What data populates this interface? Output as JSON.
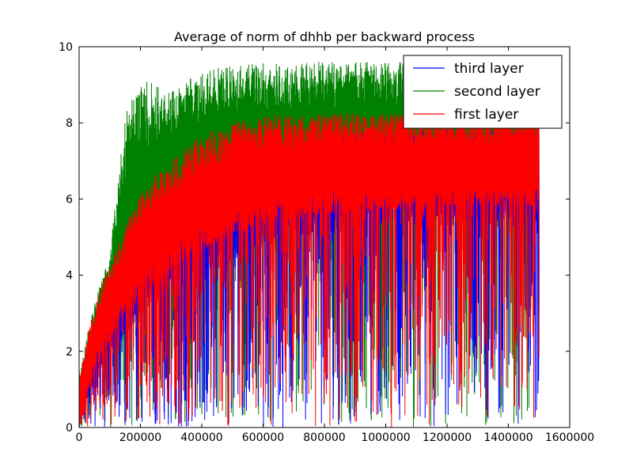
{
  "chart_data": {
    "type": "line",
    "title": "Average of norm of dhhb per backward process",
    "xlabel": "",
    "ylabel": "",
    "xlim": [
      0,
      1600000
    ],
    "ylim": [
      0,
      10
    ],
    "xticks": [
      "0",
      "200000",
      "400000",
      "600000",
      "800000",
      "1000000",
      "1200000",
      "1400000",
      "1600000"
    ],
    "yticks": [
      "0",
      "2",
      "4",
      "6",
      "8",
      "10"
    ],
    "x_end": 1500000,
    "grid": false,
    "legend": {
      "position": "top-right",
      "entries": [
        "third layer",
        "second layer",
        "first layer"
      ]
    },
    "series": [
      {
        "name": "third layer",
        "color": "#0000ff",
        "envelope": {
          "x": [
            0,
            50000,
            100000,
            150000,
            200000,
            300000,
            400000,
            500000,
            600000,
            800000,
            1000000,
            1200000,
            1400000,
            1500000
          ],
          "peak": [
            0.8,
            2.6,
            3.4,
            4.0,
            4.9,
            5.8,
            6.5,
            7.1,
            7.4,
            7.7,
            7.8,
            7.8,
            7.8,
            7.8
          ],
          "trough": [
            0,
            1.3,
            1.9,
            2.4,
            2.9,
            3.5,
            4.0,
            4.4,
            4.8,
            5.1,
            5.3,
            5.4,
            5.4,
            5.4
          ]
        }
      },
      {
        "name": "second layer",
        "color": "#008000",
        "envelope": {
          "x": [
            0,
            50000,
            100000,
            150000,
            200000,
            300000,
            400000,
            500000,
            600000,
            800000,
            1000000,
            1200000,
            1400000,
            1500000
          ],
          "peak": [
            1.5,
            3.3,
            4.6,
            8.2,
            9.2,
            8.8,
            9.4,
            9.5,
            9.6,
            9.6,
            9.6,
            9.6,
            9.6,
            9.6
          ],
          "trough": [
            0,
            1.8,
            2.6,
            3.2,
            3.8,
            4.6,
            5.2,
            5.6,
            5.8,
            6.0,
            6.2,
            6.2,
            6.2,
            6.2
          ]
        }
      },
      {
        "name": "first layer",
        "color": "#ff0000",
        "envelope": {
          "x": [
            0,
            50000,
            100000,
            150000,
            200000,
            300000,
            400000,
            500000,
            600000,
            800000,
            1000000,
            1200000,
            1400000,
            1500000
          ],
          "peak": [
            1.4,
            3.2,
            4.3,
            5.3,
            6.2,
            7.1,
            7.7,
            8.0,
            8.2,
            8.25,
            8.25,
            8.25,
            8.25,
            8.25
          ],
          "trough": [
            0,
            1.5,
            2.3,
            2.9,
            3.4,
            4.1,
            4.6,
            5.0,
            5.3,
            5.6,
            5.7,
            5.8,
            5.8,
            5.8
          ]
        }
      }
    ]
  }
}
